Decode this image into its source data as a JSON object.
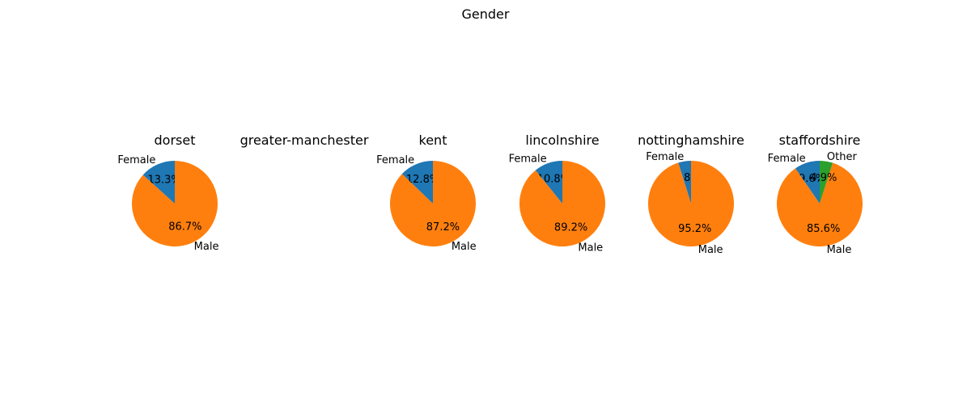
{
  "chart_data": {
    "type": "pie",
    "title": "Gender",
    "colors": {
      "Female": "#1f77b4",
      "Male": "#ff7f0e",
      "Other": "#2ca02c"
    },
    "charts": [
      {
        "title": "dorset",
        "slices": [
          {
            "label": "Female",
            "value": 13.3,
            "pct_text": "13.3%"
          },
          {
            "label": "Male",
            "value": 86.7,
            "pct_text": "86.7%"
          }
        ]
      },
      {
        "title": "greater-manchester",
        "slices": []
      },
      {
        "title": "kent",
        "slices": [
          {
            "label": "Female",
            "value": 12.8,
            "pct_text": "12.8%"
          },
          {
            "label": "Male",
            "value": 87.2,
            "pct_text": "87.2%"
          }
        ]
      },
      {
        "title": "lincolnshire",
        "slices": [
          {
            "label": "Female",
            "value": 10.8,
            "pct_text": "10.8%"
          },
          {
            "label": "Male",
            "value": 89.2,
            "pct_text": "89.2%"
          }
        ]
      },
      {
        "title": "nottinghamshire",
        "slices": [
          {
            "label": "Female",
            "value": 4.8,
            "pct_text": "4.8%"
          },
          {
            "label": "Male",
            "value": 95.2,
            "pct_text": "95.2%"
          }
        ]
      },
      {
        "title": "staffordshire",
        "slices": [
          {
            "label": "Female",
            "value": 9.6,
            "pct_text": "9.6%"
          },
          {
            "label": "Male",
            "value": 85.6,
            "pct_text": "85.6%"
          },
          {
            "label": "Other",
            "value": 4.9,
            "pct_text": "4.9%"
          }
        ]
      }
    ]
  }
}
